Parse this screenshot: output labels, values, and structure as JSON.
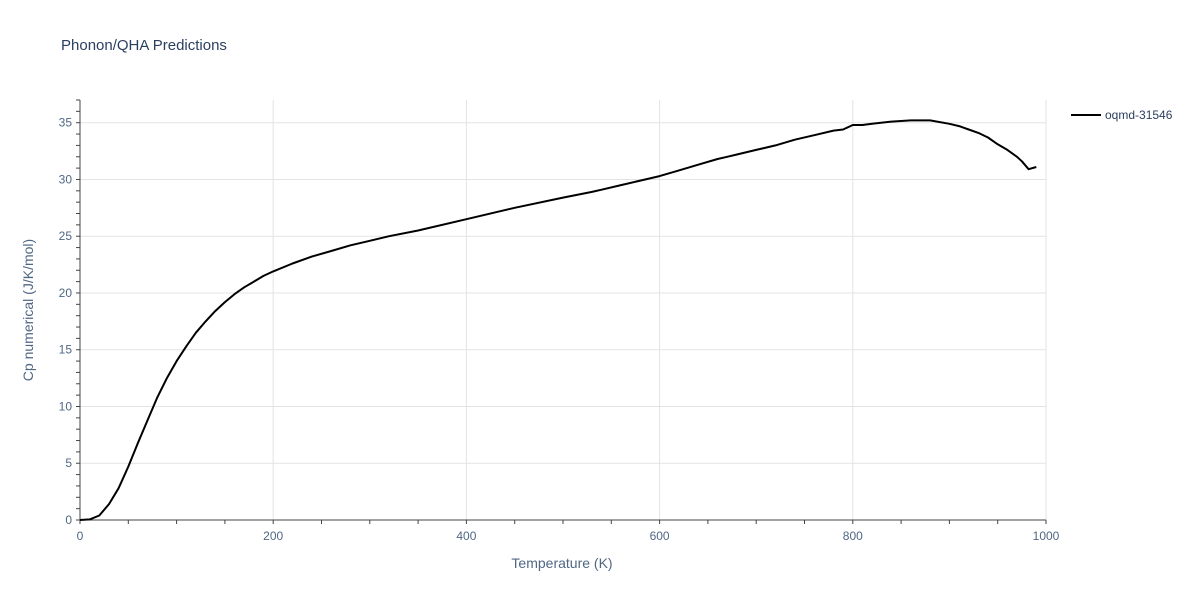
{
  "chart_data": {
    "type": "line",
    "title": "Phonon/QHA Predictions",
    "xlabel": "Temperature (K)",
    "ylabel": "Cp numerical (J/K/mol)",
    "xlim": [
      0,
      1000
    ],
    "ylim": [
      0,
      37
    ],
    "x_ticks": [
      0,
      200,
      400,
      600,
      800,
      1000
    ],
    "y_ticks": [
      0,
      5,
      10,
      15,
      20,
      25,
      30,
      35
    ],
    "grid": true,
    "legend_position": "top-right",
    "colors": {
      "series": "#000000",
      "grid": "#e3e3e3",
      "text": "#506784",
      "title": "#2a3f5f"
    },
    "series": [
      {
        "name": "oqmd-31546",
        "x": [
          0,
          10,
          20,
          30,
          40,
          50,
          60,
          70,
          80,
          90,
          100,
          110,
          120,
          130,
          140,
          150,
          160,
          170,
          180,
          190,
          200,
          220,
          240,
          260,
          280,
          300,
          320,
          350,
          400,
          450,
          500,
          530,
          540,
          560,
          580,
          600,
          620,
          640,
          660,
          670,
          680,
          700,
          720,
          740,
          760,
          780,
          790,
          800,
          810,
          820,
          840,
          860,
          880,
          900,
          910,
          920,
          930,
          940,
          950,
          960,
          970,
          975,
          982,
          990
        ],
        "y": [
          0,
          0.05,
          0.4,
          1.4,
          2.8,
          4.7,
          6.8,
          8.8,
          10.8,
          12.5,
          14,
          15.3,
          16.5,
          17.5,
          18.4,
          19.2,
          19.9,
          20.5,
          21.0,
          21.5,
          21.9,
          22.6,
          23.2,
          23.7,
          24.2,
          24.6,
          25.0,
          25.5,
          26.5,
          27.5,
          28.4,
          28.9,
          29.1,
          29.5,
          29.9,
          30.3,
          30.8,
          31.3,
          31.8,
          32.0,
          32.2,
          32.6,
          33.0,
          33.5,
          33.9,
          34.3,
          34.4,
          34.8,
          34.8,
          34.9,
          35.1,
          35.2,
          35.2,
          34.9,
          34.7,
          34.4,
          34.1,
          33.7,
          33.1,
          32.6,
          32.0,
          31.6,
          30.9,
          31.1
        ]
      }
    ]
  }
}
